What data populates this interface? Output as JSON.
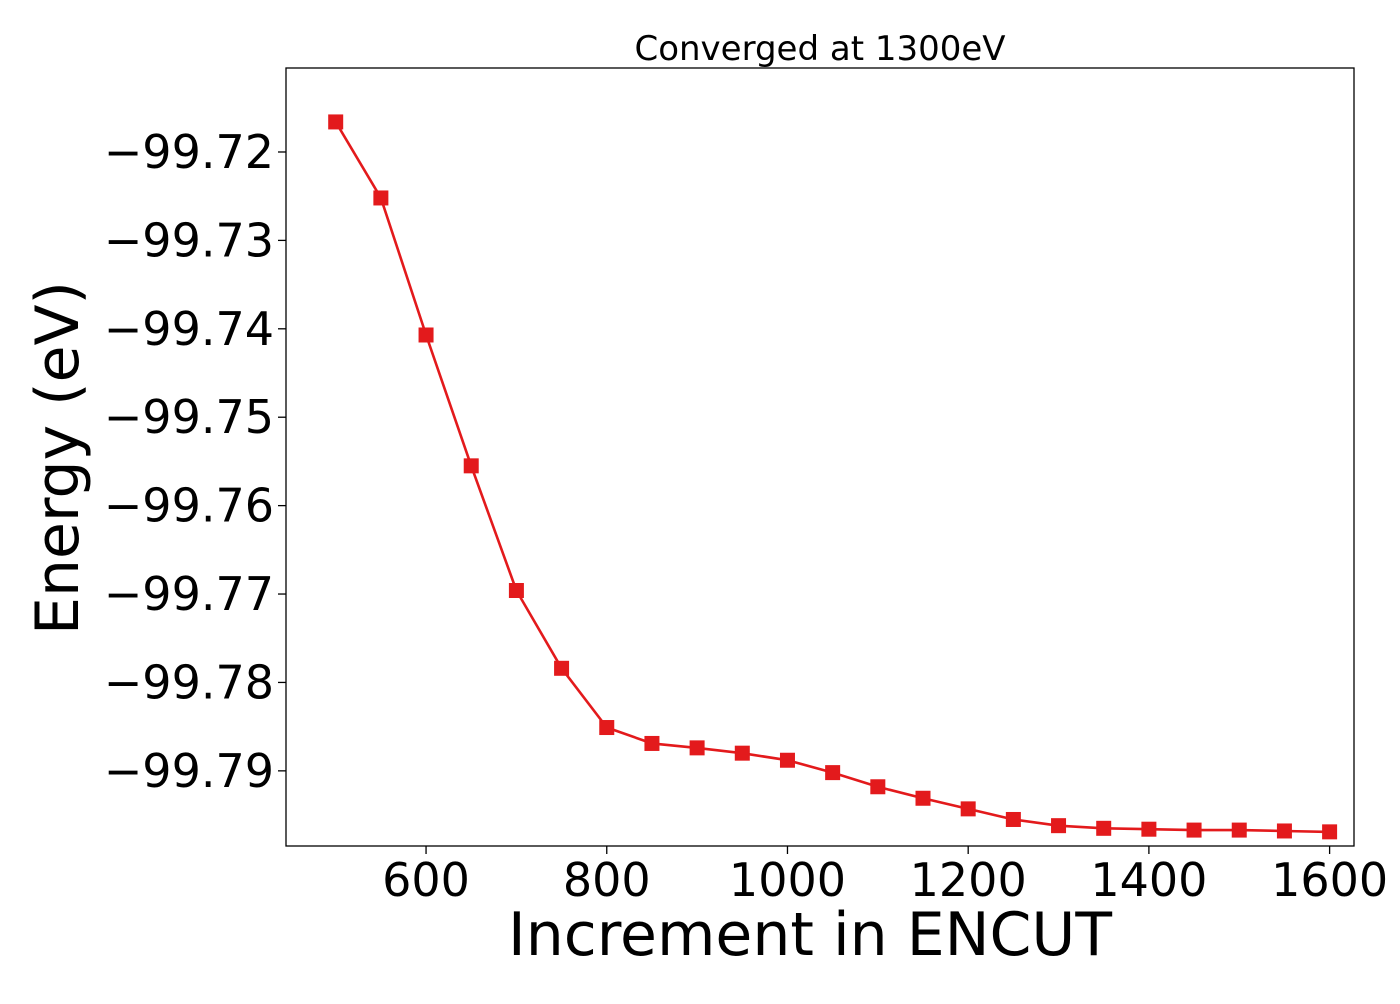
{
  "chart_data": {
    "type": "line",
    "title": "Converged at 1300eV",
    "xlabel": "Increment in ENCUT",
    "ylabel": "Energy (eV)",
    "xlim": [
      445,
      1627
    ],
    "ylim": [
      -99.7985,
      -99.7105
    ],
    "x_ticks": [
      600,
      800,
      1000,
      1200,
      1400,
      1600
    ],
    "x_tick_labels": [
      "600",
      "800",
      "1000",
      "1200",
      "1400",
      "1600"
    ],
    "y_ticks": [
      -99.72,
      -99.73,
      -99.74,
      -99.75,
      -99.76,
      -99.77,
      -99.78,
      -99.79
    ],
    "y_tick_labels": [
      "−99.72",
      "−99.73",
      "−99.74",
      "−99.75",
      "−99.76",
      "−99.77",
      "−99.78",
      "−99.79"
    ],
    "grid": false,
    "legend": false,
    "series": [
      {
        "color": "#e31a1c",
        "marker": "square",
        "x": [
          500,
          550,
          600,
          650,
          700,
          750,
          800,
          850,
          900,
          950,
          1000,
          1050,
          1100,
          1150,
          1200,
          1250,
          1300,
          1350,
          1400,
          1450,
          1500,
          1550,
          1600
        ],
        "y": [
          -99.7166,
          -99.7252,
          -99.7407,
          -99.7555,
          -99.7696,
          -99.7784,
          -99.7851,
          -99.7869,
          -99.7874,
          -99.788,
          -99.7888,
          -99.7902,
          -99.7918,
          -99.7931,
          -99.7943,
          -99.7955,
          -99.7962,
          -99.7965,
          -99.7966,
          -99.7967,
          -99.7967,
          -99.7968,
          -99.7969
        ]
      }
    ]
  }
}
